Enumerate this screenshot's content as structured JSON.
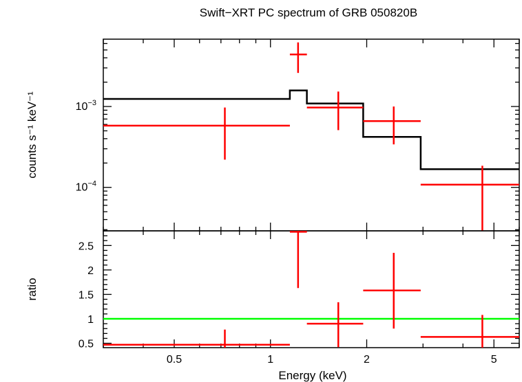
{
  "title": "Swift−XRT PC spectrum of GRB 050820B",
  "xlabel": "Energy (keV)",
  "colors": {
    "data": "#ff0000",
    "model": "#000000",
    "unity": "#00ff00",
    "axes": "#000000"
  },
  "chart_data": [
    {
      "type": "line",
      "panel": "spectrum",
      "ylabel": "counts s⁻¹ keV⁻¹",
      "xscale": "log",
      "yscale": "log",
      "xlim": [
        0.3,
        6.0
      ],
      "ylim": [
        2.9e-05,
        0.0068
      ],
      "ytick_labels": [
        {
          "base": "10",
          "exp": "−3",
          "value": 0.001
        },
        {
          "base": "10",
          "exp": "−4",
          "value": 0.0001
        }
      ],
      "data_points": [
        {
          "x": 0.72,
          "xlo": 0.3,
          "xhi": 1.15,
          "y": 0.00058,
          "ylo": 0.00022,
          "yhi": 0.00097
        },
        {
          "x": 1.22,
          "xlo": 1.15,
          "xhi": 1.3,
          "y": 0.0044,
          "ylo": 0.0026,
          "yhi": 0.0062
        },
        {
          "x": 1.63,
          "xlo": 1.3,
          "xhi": 1.95,
          "y": 0.00097,
          "ylo": 0.00051,
          "yhi": 0.00153
        },
        {
          "x": 2.43,
          "xlo": 1.95,
          "xhi": 2.95,
          "y": 0.00066,
          "ylo": 0.00034,
          "yhi": 0.001
        },
        {
          "x": 4.6,
          "xlo": 2.95,
          "xhi": 6.0,
          "y": 0.000108,
          "ylo": 2.9e-05,
          "yhi": 0.000185
        }
      ],
      "model_steps": [
        {
          "xlo": 0.3,
          "xhi": 1.15,
          "y": 0.00124
        },
        {
          "xlo": 1.15,
          "xhi": 1.3,
          "y": 0.00158
        },
        {
          "xlo": 1.3,
          "xhi": 1.95,
          "y": 0.00109
        },
        {
          "xlo": 1.95,
          "xhi": 2.95,
          "y": 0.00042
        },
        {
          "xlo": 2.95,
          "xhi": 6.0,
          "y": 0.000168
        }
      ]
    },
    {
      "type": "scatter",
      "panel": "ratio",
      "ylabel": "ratio",
      "xscale": "log",
      "yscale": "linear",
      "xlim": [
        0.3,
        6.0
      ],
      "ylim": [
        0.41,
        2.8
      ],
      "yticks": [
        0.5,
        1,
        1.5,
        2,
        2.5
      ],
      "ytick_labels": [
        "0.5",
        "1",
        "1.5",
        "2",
        "2.5"
      ],
      "xticks": [
        0.5,
        1,
        2,
        5
      ],
      "xtick_labels": [
        "0.5",
        "1",
        "2",
        "5"
      ],
      "unity_line": 1,
      "data_points": [
        {
          "x": 0.72,
          "xlo": 0.3,
          "xhi": 1.15,
          "y": 0.47,
          "ylo": 0.41,
          "yhi": 0.78
        },
        {
          "x": 1.22,
          "xlo": 1.15,
          "xhi": 1.3,
          "y": 2.78,
          "ylo": 1.63,
          "yhi": 2.8
        },
        {
          "x": 1.63,
          "xlo": 1.3,
          "xhi": 1.95,
          "y": 0.9,
          "ylo": 0.42,
          "yhi": 1.34
        },
        {
          "x": 2.43,
          "xlo": 1.95,
          "xhi": 2.95,
          "y": 1.58,
          "ylo": 0.8,
          "yhi": 2.35
        },
        {
          "x": 4.6,
          "xlo": 2.95,
          "xhi": 6.0,
          "y": 0.63,
          "ylo": 0.41,
          "yhi": 1.08
        }
      ]
    }
  ]
}
